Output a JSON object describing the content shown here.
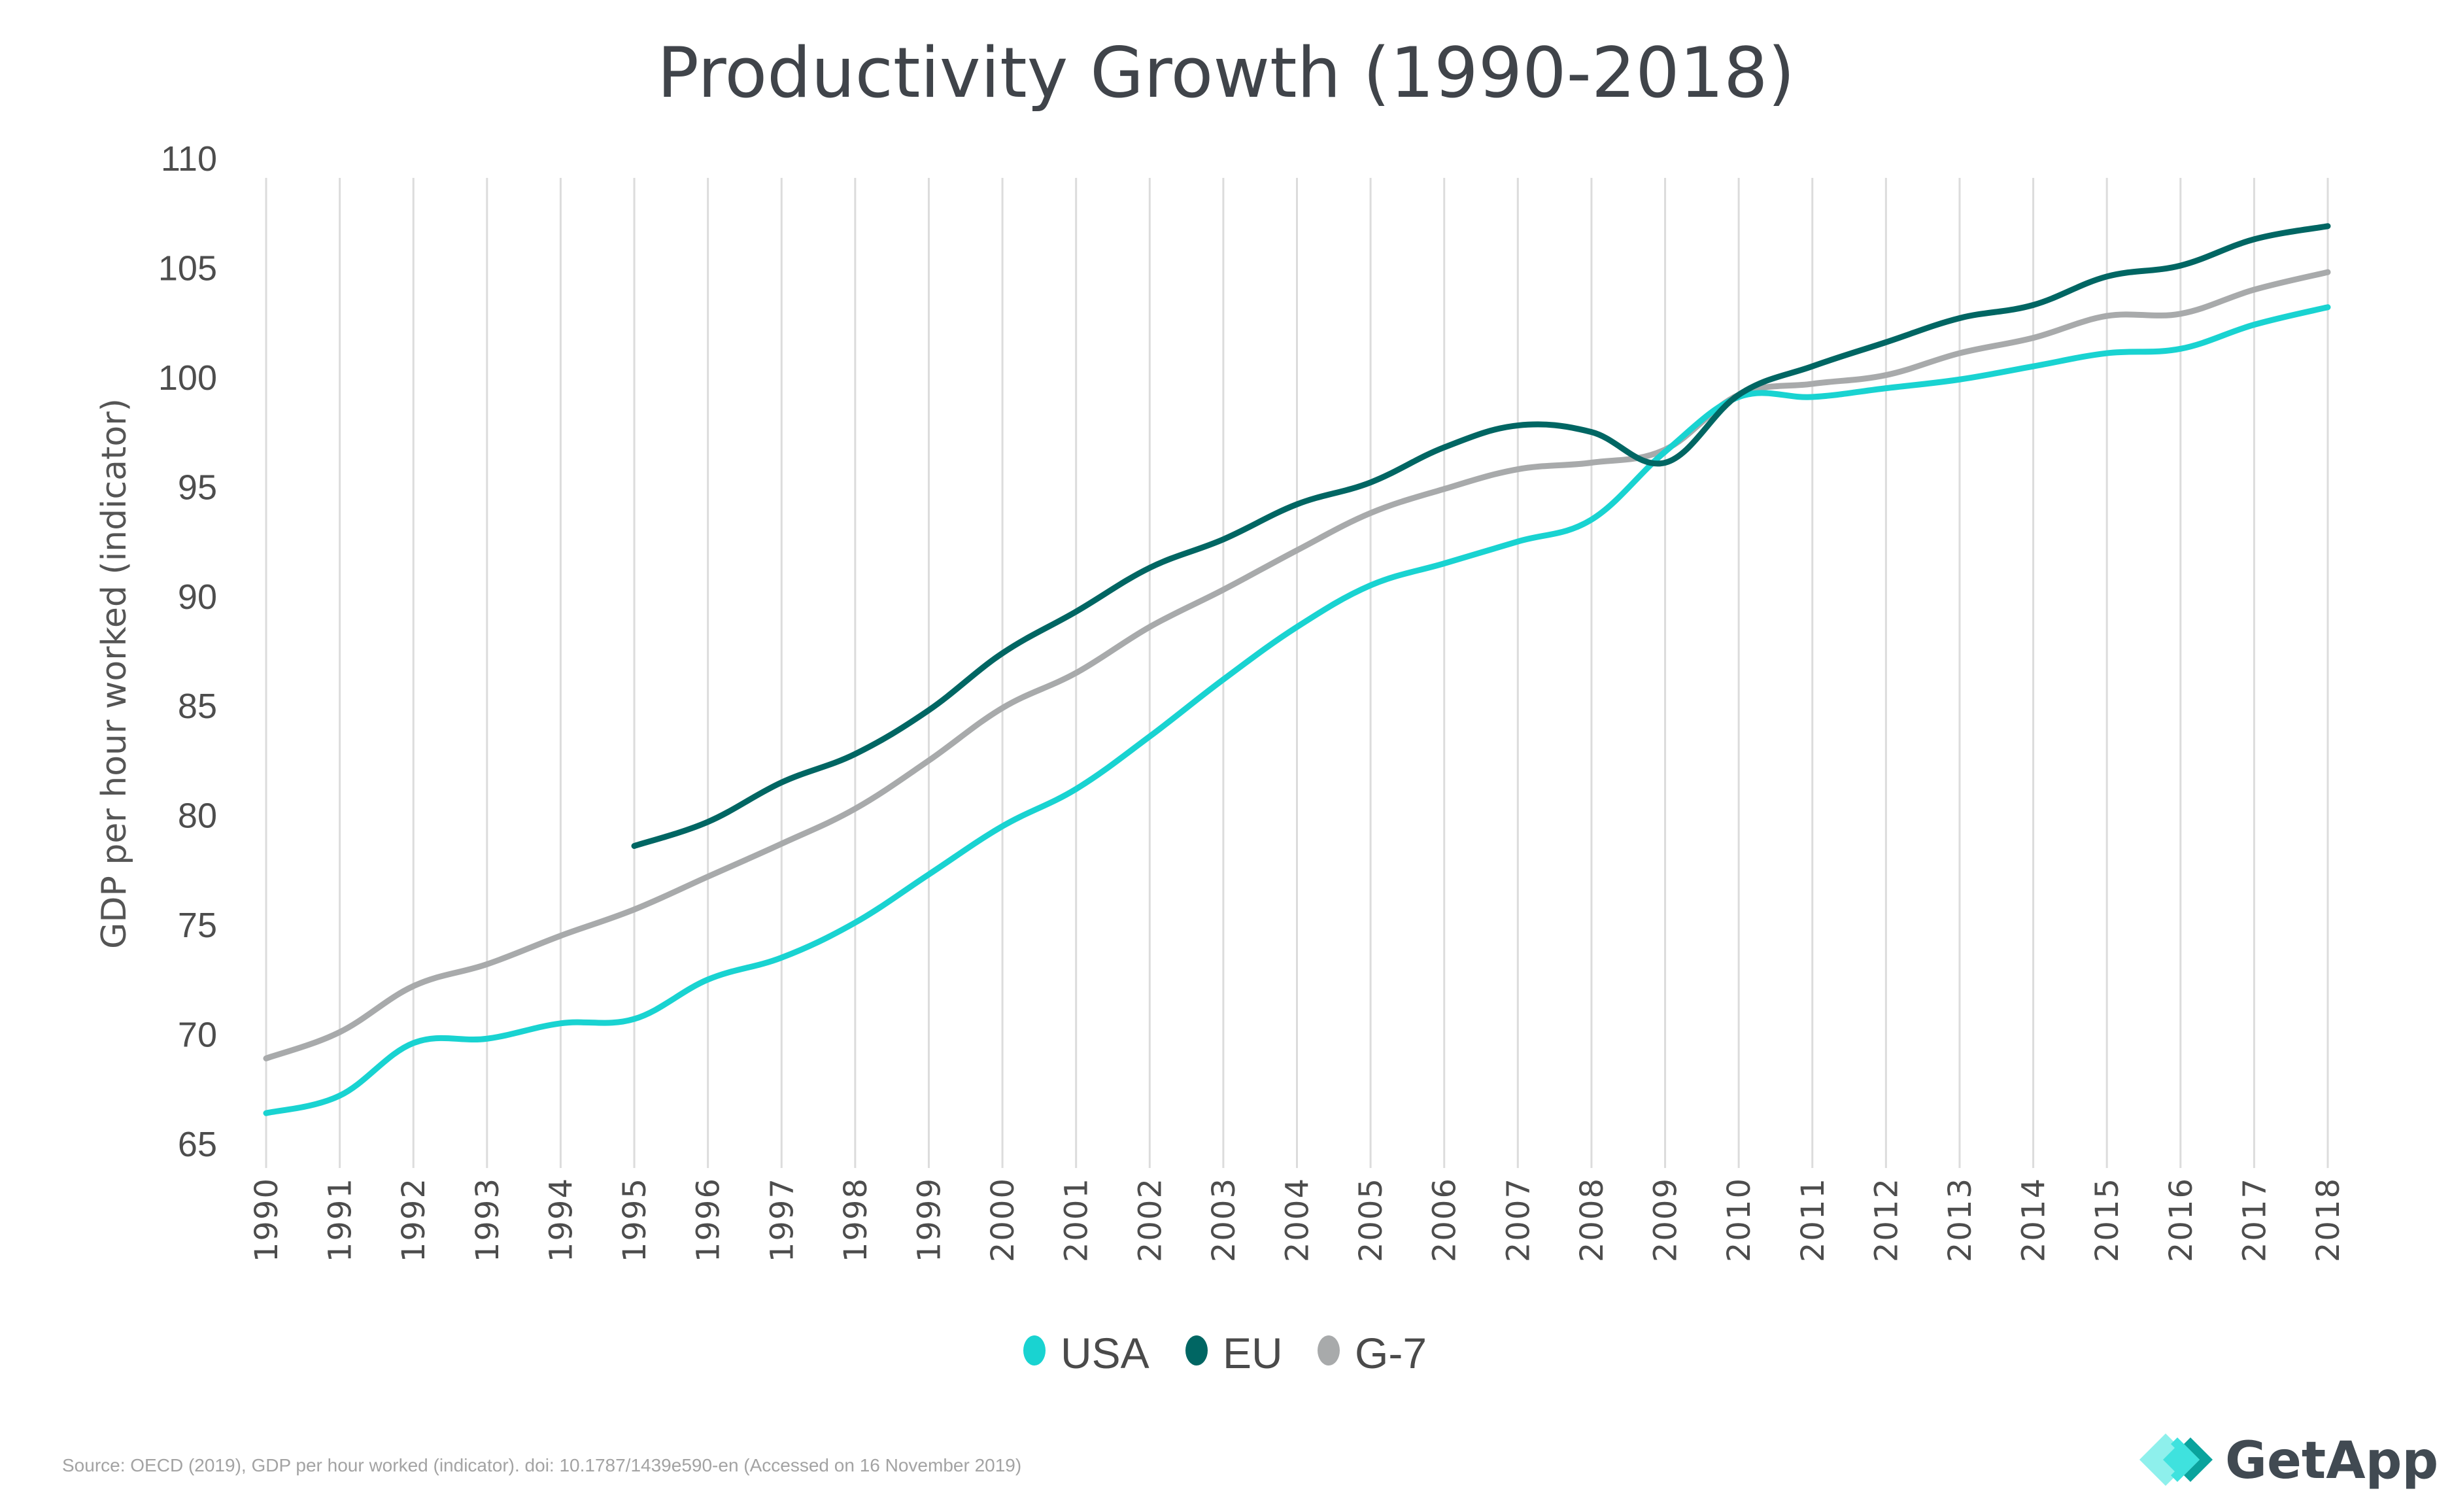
{
  "chart_data": {
    "type": "line",
    "title": "Productivity Growth (1990-2018)",
    "xlabel": "",
    "ylabel": "GDP per hour worked (indicator)",
    "ylim": [
      65,
      110
    ],
    "yticks": [
      65,
      70,
      75,
      80,
      85,
      90,
      95,
      100,
      105,
      110
    ],
    "x": [
      "1990",
      "1991",
      "1992",
      "1993",
      "1994",
      "1995",
      "1996",
      "1997",
      "1998",
      "1999",
      "2000",
      "2001",
      "2002",
      "2003",
      "2004",
      "2005",
      "2006",
      "2007",
      "2008",
      "2009",
      "2010",
      "2011",
      "2012",
      "2013",
      "2014",
      "2015",
      "2016",
      "2017",
      "2018"
    ],
    "grid": "vertical",
    "legend_position": "bottom-center",
    "series": [
      {
        "name": "USA",
        "color": "#19d3d1",
        "values": [
          66.4,
          67.2,
          69.6,
          69.8,
          70.5,
          70.7,
          72.5,
          73.5,
          75.1,
          77.3,
          79.5,
          81.2,
          83.6,
          86.2,
          88.6,
          90.5,
          91.5,
          92.5,
          93.5,
          96.6,
          99.1,
          99.1,
          99.5,
          99.9,
          100.5,
          101.1,
          101.3,
          102.4,
          103.2
        ]
      },
      {
        "name": "EU",
        "color": "#006663",
        "values": [
          null,
          null,
          null,
          null,
          null,
          78.6,
          79.7,
          81.5,
          82.8,
          84.8,
          87.4,
          89.3,
          91.3,
          92.6,
          94.2,
          95.2,
          96.8,
          97.8,
          97.5,
          96.1,
          99.2,
          100.5,
          101.6,
          102.7,
          103.3,
          104.6,
          105.1,
          106.3,
          106.9
        ]
      },
      {
        "name": "G-7",
        "color": "#a8aaab",
        "values": [
          68.9,
          70.1,
          72.2,
          73.2,
          74.5,
          75.7,
          77.2,
          78.7,
          80.3,
          82.5,
          84.9,
          86.5,
          88.6,
          90.3,
          92.1,
          93.8,
          94.9,
          95.8,
          96.1,
          96.7,
          99.2,
          99.7,
          100.1,
          101.1,
          101.8,
          102.8,
          102.9,
          104.0,
          104.8
        ]
      }
    ]
  },
  "footer": {
    "source": "Source: OECD (2019), GDP per hour worked (indicator). doi: 10.1787/1439e590-en (Accessed on 16 November 2019)",
    "brand": "GetApp"
  }
}
